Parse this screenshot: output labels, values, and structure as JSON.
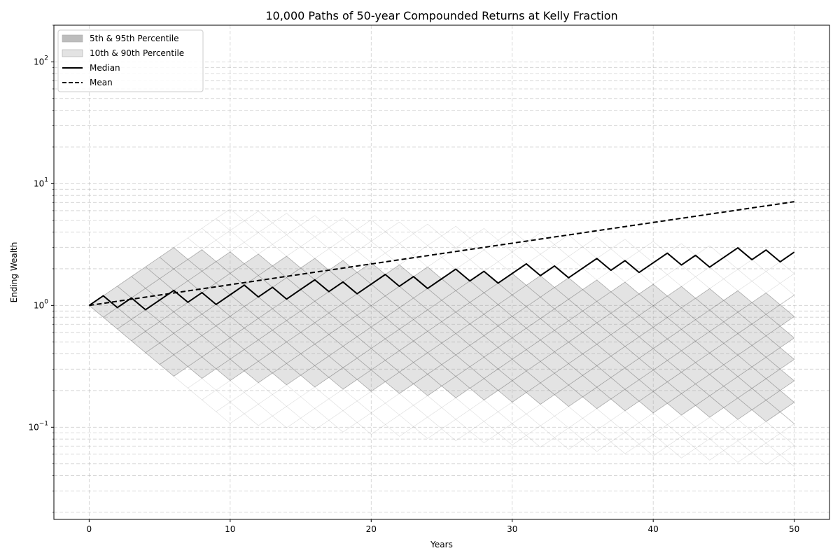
{
  "chart_data": {
    "type": "line",
    "title": "10,000 Paths of 50-year Compounded Returns at Kelly Fraction",
    "xlabel": "Years",
    "ylabel": "Ending Wealth",
    "xlim": [
      -2.5,
      52.5
    ],
    "ylim": [
      0.0175,
      200
    ],
    "yscale": "log",
    "grid": true,
    "legend_position": "top-left",
    "x_ticks": [
      0,
      10,
      20,
      30,
      40,
      50
    ],
    "y_ticks": [
      {
        "value": 0.1,
        "base": "10",
        "exp": "−1"
      },
      {
        "value": 1,
        "base": "10",
        "exp": "0"
      },
      {
        "value": 10,
        "base": "10",
        "exp": "1"
      },
      {
        "value": 100,
        "base": "10",
        "exp": "2"
      }
    ],
    "model": {
      "up_factor": 1.2,
      "down_factor": 0.8
    },
    "legend": [
      {
        "label": "5th & 95th Percentile",
        "kind": "band",
        "color": "#bdbdbd"
      },
      {
        "label": "10th & 90th Percentile",
        "kind": "band",
        "color": "#e3e3e3"
      },
      {
        "label": "Median",
        "kind": "line",
        "style": "solid",
        "color": "#000000"
      },
      {
        "label": "Mean",
        "kind": "line",
        "style": "dashed",
        "color": "#000000"
      }
    ],
    "series": [
      {
        "name": "Median",
        "values": [
          1.0,
          1.2,
          0.96,
          1.152,
          0.922,
          1.106,
          1.327,
          1.062,
          1.274,
          1.019,
          1.223,
          1.468,
          1.174,
          1.409,
          1.127,
          1.353,
          1.623,
          1.299,
          1.558,
          1.247,
          1.496,
          1.795,
          1.436,
          1.724,
          1.379,
          1.655,
          1.986,
          1.589,
          1.906,
          1.525,
          1.83,
          2.196,
          1.757,
          2.108,
          1.687,
          2.024,
          2.429,
          1.943,
          2.332,
          1.865,
          2.238,
          2.686,
          2.149,
          2.579,
          2.063,
          2.475,
          2.971,
          2.376,
          2.852,
          2.281,
          2.738
        ]
      },
      {
        "name": "Mean",
        "values": [
          1.0,
          1.04,
          1.082,
          1.125,
          1.17,
          1.217,
          1.265,
          1.316,
          1.369,
          1.423,
          1.48,
          1.539,
          1.601,
          1.665,
          1.732,
          1.801,
          1.873,
          1.948,
          2.026,
          2.107,
          2.191,
          2.279,
          2.37,
          2.465,
          2.563,
          2.666,
          2.772,
          2.883,
          2.999,
          3.119,
          3.243,
          3.373,
          3.508,
          3.648,
          3.794,
          3.946,
          4.104,
          4.268,
          4.439,
          4.616,
          4.801,
          4.993,
          5.193,
          5.4,
          5.617,
          5.841,
          6.075,
          6.318,
          6.571,
          6.833,
          7.107
        ]
      }
    ]
  }
}
